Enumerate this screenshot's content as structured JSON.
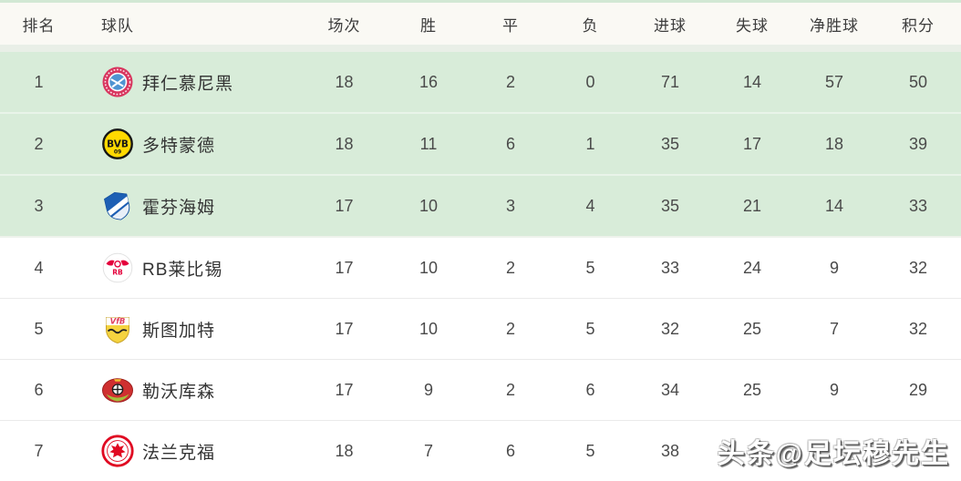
{
  "table": {
    "columns": [
      {
        "key": "rank",
        "label": "排名"
      },
      {
        "key": "team",
        "label": "球队"
      },
      {
        "key": "played",
        "label": "场次"
      },
      {
        "key": "wins",
        "label": "胜"
      },
      {
        "key": "draws",
        "label": "平"
      },
      {
        "key": "losses",
        "label": "负"
      },
      {
        "key": "goals_for",
        "label": "进球"
      },
      {
        "key": "goals_against",
        "label": "失球"
      },
      {
        "key": "goal_diff",
        "label": "净胜球"
      },
      {
        "key": "points",
        "label": "积分"
      }
    ],
    "rows": [
      {
        "rank": "1",
        "team": "拜仁慕尼黑",
        "badge": "bayern",
        "played": "18",
        "wins": "16",
        "draws": "2",
        "losses": "0",
        "goals_for": "71",
        "goals_against": "14",
        "goal_diff": "57",
        "points": "50",
        "highlight": true
      },
      {
        "rank": "2",
        "team": "多特蒙德",
        "badge": "dortmund",
        "played": "18",
        "wins": "11",
        "draws": "6",
        "losses": "1",
        "goals_for": "35",
        "goals_against": "17",
        "goal_diff": "18",
        "points": "39",
        "highlight": true
      },
      {
        "rank": "3",
        "team": "霍芬海姆",
        "badge": "hoffenheim",
        "played": "17",
        "wins": "10",
        "draws": "3",
        "losses": "4",
        "goals_for": "35",
        "goals_against": "21",
        "goal_diff": "14",
        "points": "33",
        "highlight": true
      },
      {
        "rank": "4",
        "team": "RB莱比锡",
        "badge": "leipzig",
        "played": "17",
        "wins": "10",
        "draws": "2",
        "losses": "5",
        "goals_for": "33",
        "goals_against": "24",
        "goal_diff": "9",
        "points": "32",
        "highlight": false
      },
      {
        "rank": "5",
        "team": "斯图加特",
        "badge": "stuttgart",
        "played": "17",
        "wins": "10",
        "draws": "2",
        "losses": "5",
        "goals_for": "32",
        "goals_against": "25",
        "goal_diff": "7",
        "points": "32",
        "highlight": false
      },
      {
        "rank": "6",
        "team": "勒沃库森",
        "badge": "leverkusen",
        "played": "17",
        "wins": "9",
        "draws": "2",
        "losses": "6",
        "goals_for": "34",
        "goals_against": "25",
        "goal_diff": "9",
        "points": "29",
        "highlight": false
      },
      {
        "rank": "7",
        "team": "法兰克福",
        "badge": "frankfurt",
        "played": "18",
        "wins": "7",
        "draws": "6",
        "losses": "5",
        "goals_for": "38",
        "goals_against": "",
        "goal_diff": "",
        "points": "",
        "highlight": false
      }
    ]
  },
  "badges": {
    "bayern": {
      "icon": "fc-bayern-badge-icon",
      "ring": "#d8365f",
      "center": "#4f94d2"
    },
    "dortmund": {
      "icon": "dortmund-badge-icon",
      "fill": "#ffd900",
      "text": "#161616",
      "label": "BVB",
      "sub": "09"
    },
    "hoffenheim": {
      "icon": "hoffenheim-badge-icon",
      "fill": "#1d5fb4",
      "band": "#ffffff"
    },
    "leipzig": {
      "icon": "rb-leipzig-badge-icon",
      "fill": "#ffffff",
      "accent": "#e4003c",
      "label": "RB"
    },
    "stuttgart": {
      "icon": "stuttgart-badge-icon",
      "fill": "#f5d33f",
      "accent": "#e0405f",
      "line": "#222222",
      "label": "VfB"
    },
    "leverkusen": {
      "icon": "leverkusen-badge-icon",
      "fill": "#cf3030",
      "accent": "#f2c233",
      "line": "#1c1c1c"
    },
    "frankfurt": {
      "icon": "frankfurt-badge-icon",
      "ring": "#e00a22",
      "fill": "#ffffff"
    }
  },
  "colors": {
    "highlight_row_bg": "#d8ecd9",
    "header_bg": "#faf9f4",
    "header_top_strip": "#d2e8d4",
    "header_bottom_strip": "#e9efe7",
    "row_divider": "#eaeaea",
    "text": "#4a4a4a"
  },
  "watermark": {
    "text": "头条@足坛穆先生"
  }
}
